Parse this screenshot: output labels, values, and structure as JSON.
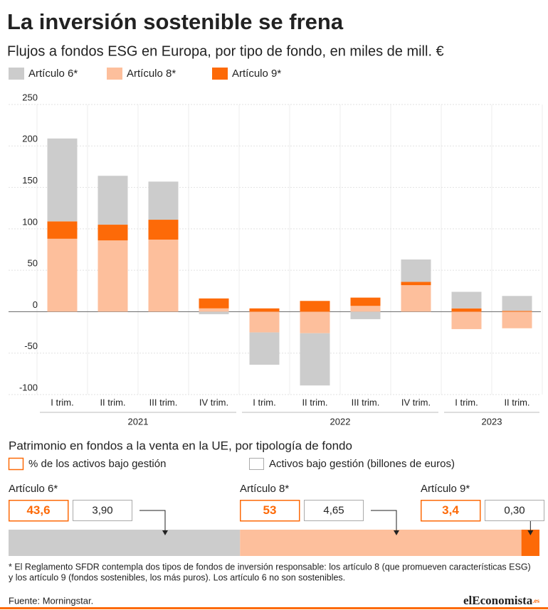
{
  "chart_data": [
    {
      "type": "stacked-bar",
      "title": "La inversión sostenible se frena",
      "subtitle": "Flujos a fondos ESG en Europa, por tipo de fondo, en miles de mill. €",
      "groups": [
        {
          "label": "2021",
          "categories": [
            "I trim.",
            "II trim.",
            "III trim.",
            "IV trim."
          ]
        },
        {
          "label": "2022",
          "categories": [
            "I trim.",
            "II trim.",
            "III trim.",
            "IV trim."
          ]
        },
        {
          "label": "2023",
          "categories": [
            "I trim.",
            "II trim."
          ]
        }
      ],
      "series": [
        {
          "name": "Artículo 6*",
          "color": "#cccccc",
          "values": [
            100,
            59,
            46,
            -3,
            -39,
            -63,
            -9,
            27,
            20,
            18
          ]
        },
        {
          "name": "Artículo 8*",
          "color": "#fdbf9c",
          "values": [
            88,
            86,
            87,
            4,
            -25,
            -26,
            7,
            32,
            -21,
            -20
          ]
        },
        {
          "name": "Artículo 9*",
          "color": "#fd6a08",
          "values": [
            21,
            19,
            24,
            12,
            4,
            13,
            10,
            4,
            4,
            1
          ]
        }
      ],
      "ylim": [
        -100,
        250
      ],
      "yticks": [
        250,
        200,
        150,
        100,
        50,
        0,
        -50,
        -100
      ],
      "grid": true,
      "legend": "top-left"
    },
    {
      "type": "share-bar",
      "title": "Patrimonio en fondos a la venta en la UE, por tipología de fondo",
      "legend": [
        "% de los activos bajo gestión",
        "Activos bajo gestión (billones de euros)"
      ],
      "categories": [
        "Artículo 6*",
        "Artículo 8*",
        "Artículo 9*"
      ],
      "values": [
        43.6,
        53,
        3.4
      ],
      "value_labels": [
        "43,6",
        "53",
        "3,4"
      ],
      "assets": [
        3.9,
        4.65,
        0.3
      ],
      "asset_labels": [
        "3,90",
        "4,65",
        "0,30"
      ],
      "colors": [
        "#cccccc",
        "#fdbf9c",
        "#fd6a08"
      ]
    }
  ],
  "footnote": [
    "* El Reglamento SFDR contempla dos tipos de fondos de inversión responsable: los artículo 8 (que promueven características ESG)",
    "y los artículo 9 (fondos sostenibles, los más puros). Los artículo 6 no son sostenibles."
  ],
  "source": "Fuente: Morningstar.",
  "logo": {
    "prefix": "el",
    "name": "Economista",
    "suffix": ".es"
  }
}
